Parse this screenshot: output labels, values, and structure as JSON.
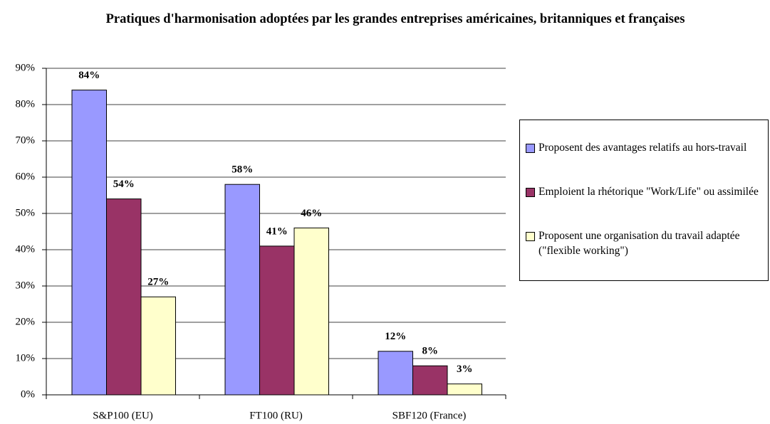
{
  "chart_data": {
    "type": "bar",
    "title": "Pratiques d'harmonisation adoptées par les grandes entreprises américaines, britanniques et françaises",
    "categories": [
      "S&P100 (EU)",
      "FT100 (RU)",
      "SBF120 (France)"
    ],
    "series": [
      {
        "name": "Proposent des avantages relatifs au hors-travail",
        "color": "#9999ff",
        "values": [
          84,
          58,
          12
        ],
        "value_labels": [
          "84%",
          "58%",
          "12%"
        ]
      },
      {
        "name": "Emploient la rhétorique \"Work/Life\" ou assimilée",
        "color": "#993366",
        "values": [
          54,
          41,
          8
        ],
        "value_labels": [
          "54%",
          "41%",
          "8%"
        ]
      },
      {
        "name": "Proposent une organisation du travail adaptée (\"flexible working\")",
        "color": "#ffffcc",
        "values": [
          27,
          46,
          3
        ],
        "value_labels": [
          "27%",
          "46%",
          "3%"
        ]
      }
    ],
    "ylim": [
      0,
      90
    ],
    "yticks": [
      {
        "value": 0,
        "label": "0%"
      },
      {
        "value": 10,
        "label": "10%"
      },
      {
        "value": 20,
        "label": "20%"
      },
      {
        "value": 30,
        "label": "30%"
      },
      {
        "value": 40,
        "label": "40%"
      },
      {
        "value": 50,
        "label": "50%"
      },
      {
        "value": 60,
        "label": "60%"
      },
      {
        "value": 70,
        "label": "70%"
      },
      {
        "value": 80,
        "label": "80%"
      },
      {
        "value": 90,
        "label": "90%"
      }
    ],
    "grid": true,
    "legend": "right"
  }
}
